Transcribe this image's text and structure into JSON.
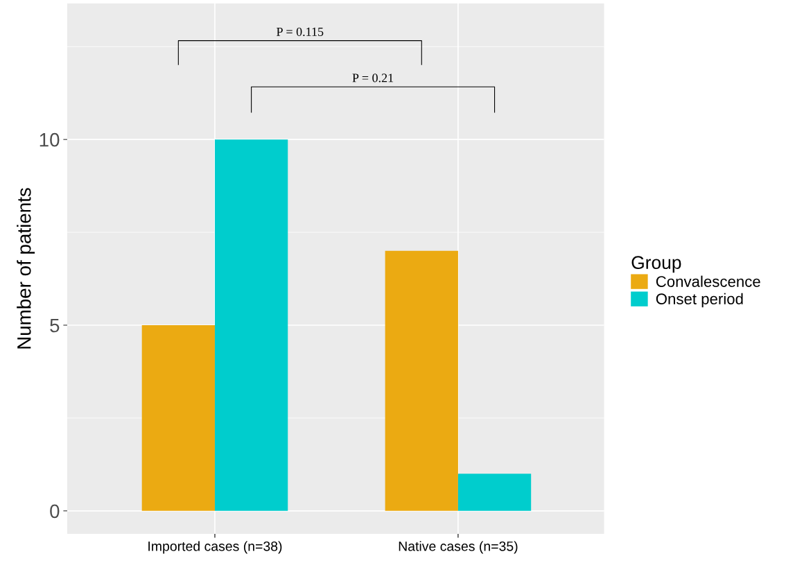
{
  "chart_data": {
    "type": "bar",
    "ylabel": "Number of patients",
    "legend_title": "Group",
    "categories": [
      "Imported cases (n=38)",
      "Native cases (n=35)"
    ],
    "series": [
      {
        "name": "Convalescence",
        "color": "#ebaa12",
        "values": [
          5,
          7
        ]
      },
      {
        "name": "Onset period",
        "color": "#00cdcd",
        "values": [
          10,
          1
        ]
      }
    ],
    "ylim": [
      -0.62,
      13.66
    ],
    "yticks": [
      0,
      {
        "value": 2.5,
        "label": null
      },
      5,
      {
        "value": 7.5,
        "label": null
      },
      10,
      {
        "value": 12.5,
        "label": null
      }
    ],
    "grid": true,
    "legend": "right",
    "annotations": [
      "P = 0.115",
      "P = 0.21"
    ]
  }
}
